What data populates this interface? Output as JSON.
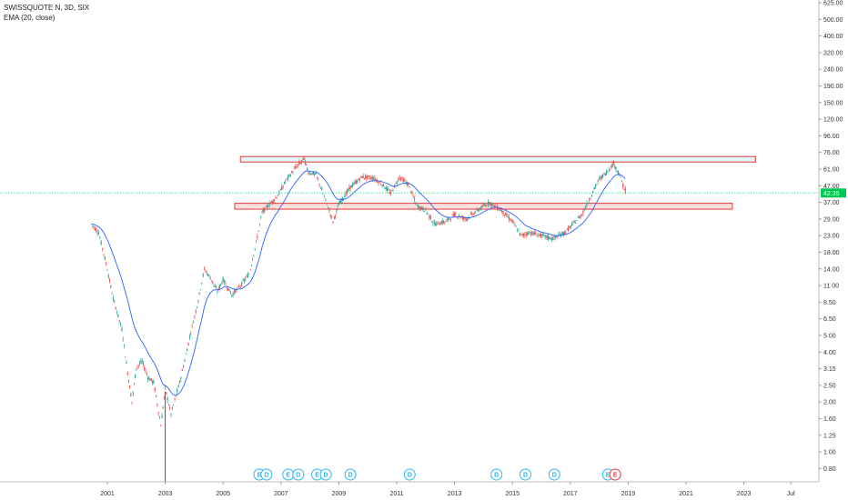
{
  "legend": {
    "symbol_line": "SWISSQUOTE N, 3D, SIX",
    "indicator_line": "EMA (20, close)"
  },
  "colors": {
    "up_candle": "#26a69a",
    "down_candle": "#ef5350",
    "ema": "#2962ff",
    "current_price_line": "#00e676",
    "price_badge": "#00c853",
    "resistance_zone_fill": "#e0f7fa",
    "resistance_zone_border": "#e53935",
    "support_zone_fill": "#fde0dc",
    "support_zone_border": "#e53935",
    "dividend_event": "#29b6f6",
    "earnings_event": "#e53935"
  },
  "chart_data": {
    "type": "candlestick",
    "symbol": "SWISSQUOTE N",
    "interval": "3D",
    "exchange": "SIX",
    "indicator": "EMA (20, close)",
    "y_scale": "log",
    "last_price": "42.35",
    "x_tick_labels": [
      "2001",
      "2003",
      "2005",
      "2007",
      "2009",
      "2011",
      "2013",
      "2015",
      "2017",
      "2019",
      "2021",
      "2023",
      "Jul"
    ],
    "y_tick_labels": [
      "625.00",
      "500.00",
      "400.00",
      "320.00",
      "240.00",
      "190.00",
      "150.00",
      "120.00",
      "96.00",
      "76.00",
      "61.00",
      "47.00",
      "37.00",
      "29.00",
      "23.00",
      "18.00",
      "14.00",
      "11.00",
      "8.50",
      "6.50",
      "5.00",
      "4.00",
      "3.15",
      "2.50",
      "2.00",
      "1.60",
      "1.25",
      "1.00",
      "0.80"
    ],
    "price_path": [
      {
        "x": 2000.45,
        "y": 27
      },
      {
        "x": 2000.7,
        "y": 24
      },
      {
        "x": 2001.0,
        "y": 14
      },
      {
        "x": 2001.2,
        "y": 9
      },
      {
        "x": 2001.5,
        "y": 5.5
      },
      {
        "x": 2001.7,
        "y": 3.0
      },
      {
        "x": 2001.85,
        "y": 2.0
      },
      {
        "x": 2002.0,
        "y": 3.2
      },
      {
        "x": 2002.2,
        "y": 3.5
      },
      {
        "x": 2002.4,
        "y": 2.8
      },
      {
        "x": 2002.6,
        "y": 2.6
      },
      {
        "x": 2002.85,
        "y": 1.45
      },
      {
        "x": 2003.0,
        "y": 2.4
      },
      {
        "x": 2003.2,
        "y": 1.7
      },
      {
        "x": 2003.5,
        "y": 2.6
      },
      {
        "x": 2003.8,
        "y": 4.5
      },
      {
        "x": 2004.1,
        "y": 8.0
      },
      {
        "x": 2004.35,
        "y": 14.0
      },
      {
        "x": 2004.6,
        "y": 12.0
      },
      {
        "x": 2004.8,
        "y": 10.0
      },
      {
        "x": 2005.0,
        "y": 12.0
      },
      {
        "x": 2005.3,
        "y": 9.5
      },
      {
        "x": 2005.6,
        "y": 11.0
      },
      {
        "x": 2005.9,
        "y": 13.0
      },
      {
        "x": 2006.1,
        "y": 19.0
      },
      {
        "x": 2006.35,
        "y": 32.0
      },
      {
        "x": 2006.6,
        "y": 36.0
      },
      {
        "x": 2006.9,
        "y": 41.0
      },
      {
        "x": 2007.2,
        "y": 52.0
      },
      {
        "x": 2007.5,
        "y": 62.0
      },
      {
        "x": 2007.8,
        "y": 70.0
      },
      {
        "x": 2007.95,
        "y": 58.0
      },
      {
        "x": 2008.2,
        "y": 56.0
      },
      {
        "x": 2008.5,
        "y": 40.0
      },
      {
        "x": 2008.8,
        "y": 28.0
      },
      {
        "x": 2009.0,
        "y": 36.0
      },
      {
        "x": 2009.4,
        "y": 46.0
      },
      {
        "x": 2009.8,
        "y": 54.0
      },
      {
        "x": 2010.2,
        "y": 53.0
      },
      {
        "x": 2010.5,
        "y": 48.0
      },
      {
        "x": 2010.8,
        "y": 42.0
      },
      {
        "x": 2011.1,
        "y": 54.0
      },
      {
        "x": 2011.4,
        "y": 48.0
      },
      {
        "x": 2011.7,
        "y": 35.0
      },
      {
        "x": 2012.0,
        "y": 33.0
      },
      {
        "x": 2012.3,
        "y": 27.0
      },
      {
        "x": 2012.7,
        "y": 28.0
      },
      {
        "x": 2013.0,
        "y": 31.0
      },
      {
        "x": 2013.4,
        "y": 29.0
      },
      {
        "x": 2013.8,
        "y": 33.0
      },
      {
        "x": 2014.2,
        "y": 37.0
      },
      {
        "x": 2014.6,
        "y": 33.0
      },
      {
        "x": 2015.0,
        "y": 28.0
      },
      {
        "x": 2015.3,
        "y": 23.0
      },
      {
        "x": 2015.6,
        "y": 24.0
      },
      {
        "x": 2016.0,
        "y": 23.0
      },
      {
        "x": 2016.4,
        "y": 22.0
      },
      {
        "x": 2016.8,
        "y": 24.0
      },
      {
        "x": 2017.1,
        "y": 27.0
      },
      {
        "x": 2017.4,
        "y": 31.0
      },
      {
        "x": 2017.7,
        "y": 40.0
      },
      {
        "x": 2018.0,
        "y": 52.0
      },
      {
        "x": 2018.25,
        "y": 58.0
      },
      {
        "x": 2018.5,
        "y": 66.0
      },
      {
        "x": 2018.7,
        "y": 56.0
      },
      {
        "x": 2018.9,
        "y": 42.35
      }
    ],
    "zones": [
      {
        "name": "resistance",
        "x_start": 2005.6,
        "x_end": 2023.4,
        "y_low": 67.0,
        "y_high": 72.0
      },
      {
        "name": "support",
        "x_start": 2005.4,
        "x_end": 2022.6,
        "y_low": 33.5,
        "y_high": 36.5
      }
    ],
    "events": [
      {
        "label": "E",
        "x": 2006.25,
        "kind": "earnings"
      },
      {
        "label": "D",
        "x": 2006.5,
        "kind": "dividend"
      },
      {
        "label": "E",
        "x": 2007.25,
        "kind": "earnings"
      },
      {
        "label": "D",
        "x": 2007.6,
        "kind": "dividend"
      },
      {
        "label": "E",
        "x": 2008.25,
        "kind": "earnings"
      },
      {
        "label": "D",
        "x": 2008.55,
        "kind": "dividend"
      },
      {
        "label": "D",
        "x": 2009.4,
        "kind": "dividend"
      },
      {
        "label": "D",
        "x": 2011.45,
        "kind": "dividend"
      },
      {
        "label": "D",
        "x": 2014.45,
        "kind": "dividend"
      },
      {
        "label": "D",
        "x": 2015.45,
        "kind": "dividend"
      },
      {
        "label": "D",
        "x": 2016.45,
        "kind": "dividend"
      },
      {
        "label": "E",
        "x": 2018.3,
        "kind": "earnings"
      },
      {
        "label": "E",
        "x": 2018.55,
        "kind": "earnings-highlight"
      }
    ]
  }
}
